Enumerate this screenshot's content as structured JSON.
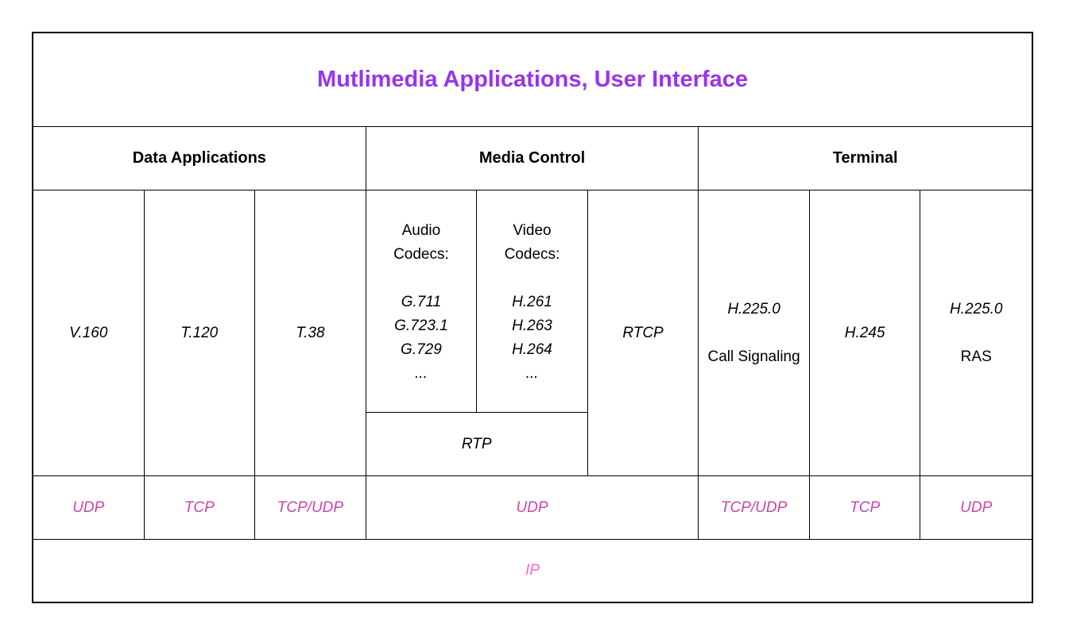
{
  "colors": {
    "title": "#9933ee",
    "transport": "#cc44aa",
    "ip": "#ff66cc"
  },
  "title": "Mutlimedia Applications, User Interface",
  "headers": {
    "data_applications": "Data Applications",
    "media_control": "Media Control",
    "terminal": "Terminal"
  },
  "cells": {
    "v160": "V.160",
    "t120": "T.120",
    "t38": "T.38",
    "audio_codecs": {
      "label": "Audio Codecs:",
      "items": [
        "G.711",
        "G.723.1",
        "G.729",
        "..."
      ]
    },
    "video_codecs": {
      "label": "Video Codecs:",
      "items": [
        "H.261",
        "H.263",
        "H.264",
        "..."
      ]
    },
    "rtcp": "RTCP",
    "rtp": "RTP",
    "call_signaling": {
      "protocol": "H.225.0",
      "label": "Call Signaling"
    },
    "h245": "H.245",
    "ras": {
      "protocol": "H.225.0",
      "label": "RAS"
    }
  },
  "transport": {
    "udp_v160": "UDP",
    "tcp_t120": "TCP",
    "tcpudp_t38": "TCP/UDP",
    "udp_media": "UDP",
    "tcpudp_call": "TCP/UDP",
    "tcp_h245": "TCP",
    "udp_ras": "UDP"
  },
  "ip": "IP"
}
